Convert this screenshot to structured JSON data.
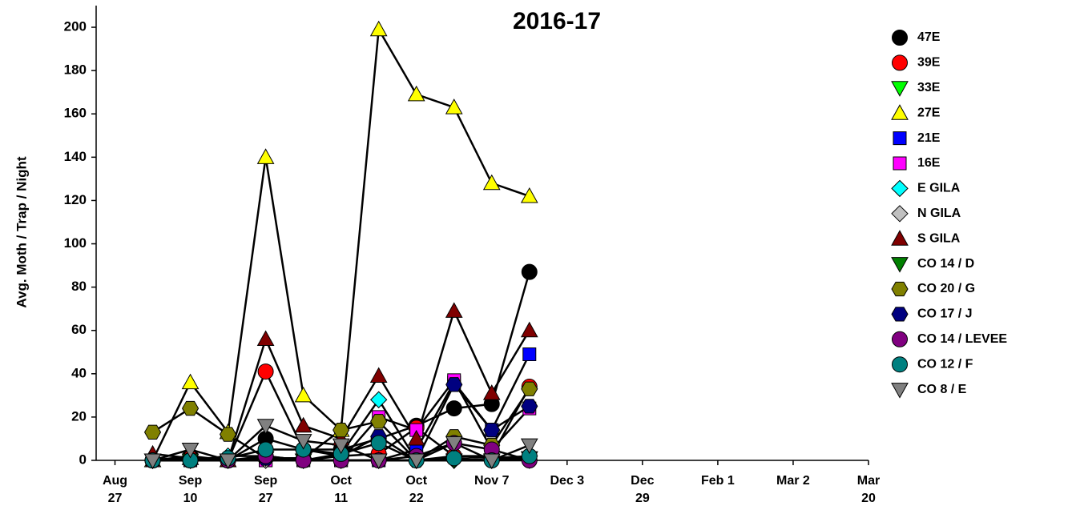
{
  "chart_data": {
    "type": "line",
    "title": "2016-17",
    "y_label": "Avg. Moth / Trap / Night",
    "x": [
      0.5,
      1,
      1.5,
      2,
      2.5,
      3,
      3.5,
      4,
      4.5,
      5,
      5.5
    ],
    "xlim": [
      -0.25,
      10
    ],
    "xticks": [
      {
        "value": 0,
        "label": "Aug 27"
      },
      {
        "value": 1,
        "label": "Sep 10"
      },
      {
        "value": 2,
        "label": "Sep 27"
      },
      {
        "value": 3,
        "label": "Oct 11"
      },
      {
        "value": 4,
        "label": "Oct 22"
      },
      {
        "value": 5,
        "label": "Nov 7"
      },
      {
        "value": 6,
        "label": "Dec 3"
      },
      {
        "value": 7,
        "label": "Dec 29"
      },
      {
        "value": 8,
        "label": "Feb 1"
      },
      {
        "value": 9,
        "label": "Mar 2"
      },
      {
        "value": 10,
        "label": "Mar 20"
      }
    ],
    "ylim": [
      0,
      210
    ],
    "yticks": [
      0,
      20,
      40,
      60,
      80,
      100,
      120,
      140,
      160,
      180,
      200
    ],
    "line_color": "#000000",
    "series": [
      {
        "name": "47E",
        "color": "#000000",
        "marker": "circle",
        "values": [
          0,
          2,
          0,
          10,
          5,
          5,
          10,
          16,
          24,
          26,
          87
        ]
      },
      {
        "name": "39E",
        "color": "#ff0000",
        "marker": "circle",
        "values": [
          0,
          1,
          0,
          41,
          5,
          2,
          3,
          15,
          2,
          2,
          34
        ]
      },
      {
        "name": "33E",
        "color": "#00ff00",
        "marker": "triangle-down",
        "values": [
          0,
          0,
          0,
          1,
          0,
          0,
          0,
          0,
          0,
          0,
          1
        ]
      },
      {
        "name": "27E",
        "color": "#ffff00",
        "marker": "triangle-up",
        "values": [
          0,
          36,
          13,
          140,
          30,
          14,
          199,
          169,
          163,
          128,
          122
        ]
      },
      {
        "name": "21E",
        "color": "#0000ff",
        "marker": "square",
        "values": [
          0,
          0,
          0,
          0,
          0,
          0,
          0,
          5,
          36,
          14,
          49
        ]
      },
      {
        "name": "16E",
        "color": "#ff00ff",
        "marker": "square",
        "values": [
          0,
          0,
          0,
          0,
          0,
          0,
          20,
          14,
          37,
          5,
          24
        ]
      },
      {
        "name": "E GILA",
        "color": "#00ffff",
        "marker": "diamond",
        "values": [
          0,
          0,
          2,
          2,
          0,
          3,
          28,
          0,
          2,
          1,
          2
        ]
      },
      {
        "name": "N GILA",
        "color": "#c0c0c0",
        "marker": "diamond",
        "values": [
          0,
          0,
          0,
          0,
          0,
          0,
          0,
          0,
          0,
          0,
          0
        ]
      },
      {
        "name": "S GILA",
        "color": "#800000",
        "marker": "triangle-up",
        "values": [
          3,
          1,
          0,
          56,
          16,
          10,
          39,
          10,
          69,
          31,
          60
        ]
      },
      {
        "name": "CO 14 / D",
        "color": "#008000",
        "marker": "triangle-down",
        "values": [
          0,
          0,
          0,
          1,
          0,
          0,
          0,
          0,
          0,
          0,
          1
        ]
      },
      {
        "name": "CO 20 / G",
        "color": "#808000",
        "marker": "hexagon",
        "values": [
          13,
          24,
          12,
          1,
          1,
          14,
          18,
          0,
          11,
          7,
          33
        ]
      },
      {
        "name": "CO 17 / J",
        "color": "#000080",
        "marker": "hexagon",
        "values": [
          0,
          0,
          0,
          1,
          0,
          2,
          11,
          0,
          35,
          14,
          25
        ]
      },
      {
        "name": "CO 14 / LEVEE",
        "color": "#800080",
        "marker": "circle",
        "values": [
          0,
          0,
          0,
          2,
          0,
          0,
          0,
          2,
          8,
          5,
          0
        ]
      },
      {
        "name": "CO 12 / F",
        "color": "#008080",
        "marker": "circle",
        "values": [
          0,
          0,
          1,
          5,
          5,
          3,
          8,
          0,
          1,
          0,
          2
        ]
      },
      {
        "name": "CO 8 / E",
        "color": "#808080",
        "marker": "triangle-down",
        "values": [
          0,
          5,
          0,
          16,
          9,
          7,
          0,
          0,
          8,
          0,
          7
        ]
      }
    ]
  }
}
